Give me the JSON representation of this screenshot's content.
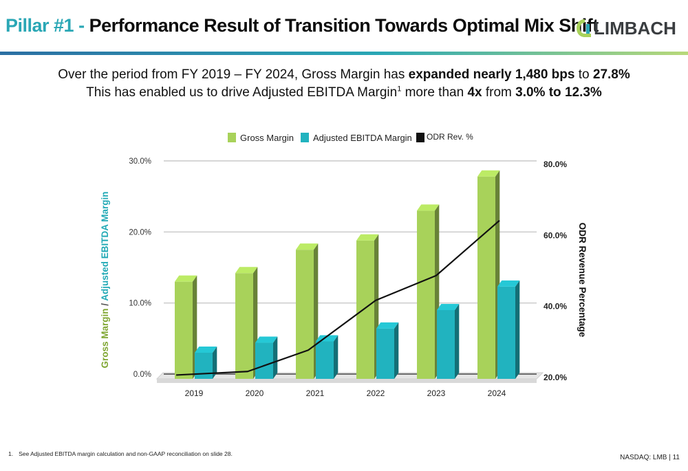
{
  "header": {
    "title_prefix": "Pillar #1 -",
    "title_main": "Performance Result of Transition Towards Optimal Mix Shift",
    "logo_text": "LIMBACH"
  },
  "subtitle": {
    "line1_a": "Over the period from FY 2019 – FY 2024, Gross Margin has ",
    "line1_b": "expanded nearly 1,480 bps",
    "line1_c": " to ",
    "line1_d": "27.8%",
    "line2_a": "This has enabled us to drive Adjusted EBITDA Margin",
    "line2_sup": "1",
    "line2_b": " more than ",
    "line2_c": "4x",
    "line2_d": " from ",
    "line2_e": "3.0% to 12.3%"
  },
  "chart_data": {
    "type": "bar",
    "categories": [
      "2019",
      "2020",
      "2021",
      "2022",
      "2023",
      "2024"
    ],
    "series": [
      {
        "name": "Gross Margin",
        "axis": "left",
        "type": "bar",
        "color": "#a8d25a",
        "values": [
          13.0,
          14.2,
          17.5,
          18.8,
          23.0,
          27.8
        ]
      },
      {
        "name": "Adjusted EBITDA Margin",
        "axis": "left",
        "type": "bar",
        "color": "#21b3bf",
        "values": [
          3.0,
          4.4,
          4.6,
          6.4,
          9.0,
          12.3
        ]
      },
      {
        "name": "ODR Rev. %",
        "axis": "right",
        "type": "line",
        "color": "#111111",
        "values": [
          20.5,
          21.5,
          27.5,
          41.5,
          48.5,
          64.0
        ]
      }
    ],
    "legend": {
      "placement": "top",
      "labels": [
        "Gross Margin",
        "Adjusted EBITDA Margin",
        "ODR Rev. %"
      ]
    },
    "y_left": {
      "label_part1": "Gross Margin",
      "label_sep": " / ",
      "label_part2": "Adjusted EBITDA Margin",
      "ylim": [
        0,
        30
      ],
      "ticks": [
        "0.0%",
        "10.0%",
        "20.0%",
        "30.0%"
      ]
    },
    "y_right": {
      "label": "ODR Revenue Percentage",
      "ylim": [
        20,
        80
      ],
      "ticks": [
        "20.0%",
        "40.0%",
        "60.0%",
        "80.0%"
      ],
      "tick_values": [
        20,
        40,
        60,
        80
      ]
    },
    "grid": true
  },
  "footer": {
    "footnote_num": "1.",
    "footnote_text": "See Adjusted EBITDA margin calculation and non-GAAP reconciliation on slide 28.",
    "page": "NASDAQ: LMB | 11"
  }
}
